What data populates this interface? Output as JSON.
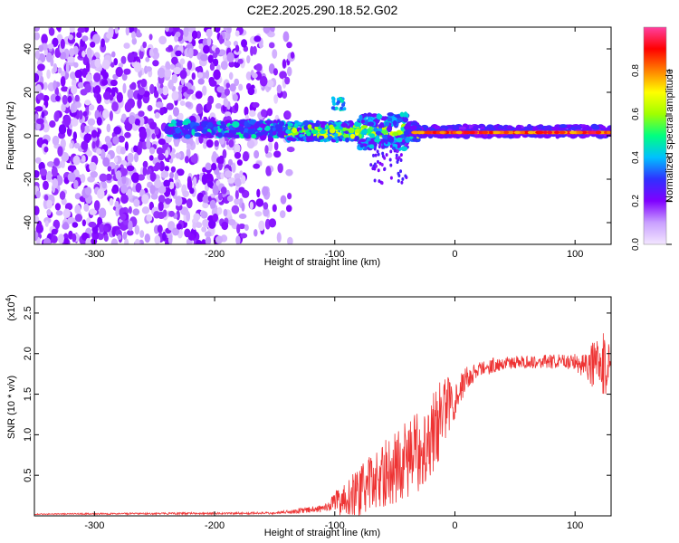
{
  "title": "C2E2.2025.290.18.52.G02",
  "chart_data": [
    {
      "type": "heatmap",
      "xlabel": "Height of straight line (km)",
      "ylabel": "Frequency (Hz)",
      "xlim": [
        -350,
        130
      ],
      "ylim": [
        -50,
        50
      ],
      "xticks": [
        -300,
        -200,
        -100,
        0,
        100
      ],
      "yticks": [
        -40,
        -20,
        0,
        20,
        40
      ],
      "colorbar": {
        "label": "Normalized spectral amplitude",
        "range": [
          0.0,
          1.0
        ],
        "ticks": [
          "0.0",
          "0.2",
          "0.4",
          "0.6",
          "0.8"
        ],
        "stops": [
          "#f3e6ff",
          "#c9a0ff",
          "#8000ff",
          "#3030ff",
          "#00c0ff",
          "#00ff80",
          "#a0ff00",
          "#ffff00",
          "#ff8000",
          "#ff0000",
          "#ff40a0"
        ]
      },
      "features": [
        {
          "region": "scattered noise",
          "x_range": [
            -350,
            -140
          ],
          "y_range": [
            -50,
            50
          ],
          "amplitude": 0.12
        },
        {
          "region": "emerging line",
          "x_range": [
            -240,
            -140
          ],
          "y_center": 3,
          "amplitude": 0.3
        },
        {
          "region": "transition",
          "x_range": [
            -140,
            -30
          ],
          "y_center": 3,
          "amplitude": 0.45
        },
        {
          "region": "strong line",
          "x_range": [
            -30,
            130
          ],
          "y_center": 1.5,
          "amplitude": 0.95
        }
      ]
    },
    {
      "type": "line",
      "xlabel": "Height of straight line (km)",
      "ylabel": "SNR (10 * v/v)",
      "scale_label": "(x10",
      "scale_exp": "4",
      "xlim": [
        -350,
        130
      ],
      "ylim": [
        0,
        2.7
      ],
      "xticks": [
        -300,
        -200,
        -100,
        0,
        100
      ],
      "yticks": [
        "0.5",
        "1.0",
        "1.5",
        "2.0",
        "2.5"
      ],
      "series": [
        {
          "name": "SNR",
          "color": "#ee3333",
          "envelope": {
            "x": [
              -350,
              -150,
              -110,
              -80,
              -50,
              -30,
              -15,
              -10,
              0,
              10,
              20,
              30,
              40,
              60,
              100,
              120,
              130
            ],
            "mean": [
              0.02,
              0.03,
              0.08,
              0.3,
              0.6,
              0.8,
              1.1,
              1.3,
              1.45,
              1.7,
              1.8,
              1.85,
              1.88,
              1.9,
              1.9,
              1.85,
              1.9
            ],
            "spread": [
              0.01,
              0.02,
              0.06,
              0.3,
              0.45,
              0.5,
              0.5,
              0.45,
              0.25,
              0.15,
              0.1,
              0.1,
              0.08,
              0.08,
              0.1,
              0.35,
              0.45
            ]
          }
        }
      ]
    }
  ]
}
